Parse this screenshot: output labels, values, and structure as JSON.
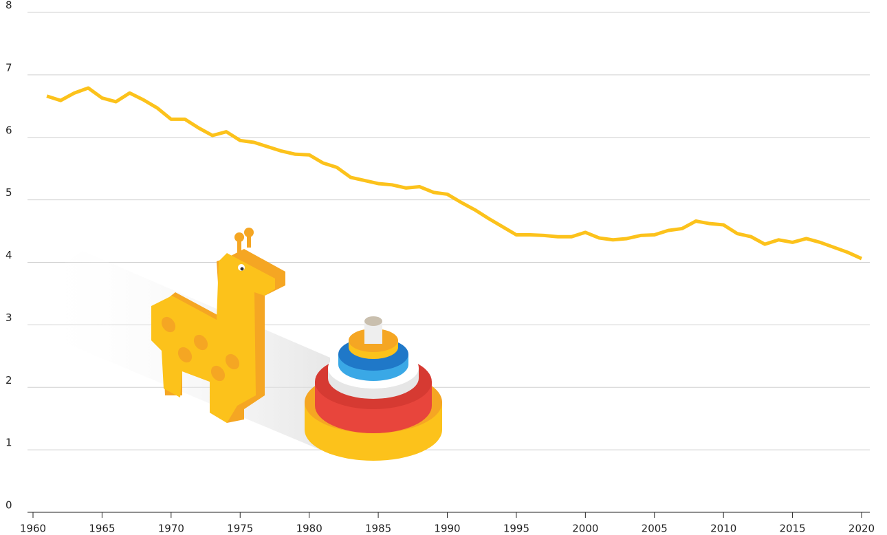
{
  "chart_data": {
    "type": "line",
    "x": [
      1961,
      1962,
      1963,
      1964,
      1965,
      1966,
      1967,
      1968,
      1969,
      1970,
      1971,
      1972,
      1973,
      1974,
      1975,
      1976,
      1977,
      1978,
      1979,
      1980,
      1981,
      1982,
      1983,
      1984,
      1985,
      1986,
      1987,
      1988,
      1989,
      1990,
      1991,
      1992,
      1993,
      1994,
      1995,
      1996,
      1997,
      1998,
      1999,
      2000,
      2001,
      2002,
      2003,
      2004,
      2005,
      2006,
      2007,
      2008,
      2009,
      2010,
      2011,
      2012,
      2013,
      2014,
      2015,
      2016,
      2017,
      2018,
      2019,
      2020
    ],
    "series": [
      {
        "color": "#fcc21b",
        "values": [
          6.66,
          6.59,
          6.71,
          6.79,
          6.63,
          6.57,
          6.71,
          6.6,
          6.47,
          6.29,
          6.29,
          6.15,
          6.03,
          6.09,
          5.95,
          5.92,
          5.85,
          5.78,
          5.73,
          5.72,
          5.59,
          5.52,
          5.36,
          5.31,
          5.26,
          5.24,
          5.19,
          5.21,
          5.12,
          5.09,
          4.96,
          4.84,
          4.7,
          4.57,
          4.44,
          4.44,
          4.43,
          4.41,
          4.41,
          4.48,
          4.39,
          4.36,
          4.38,
          4.43,
          4.44,
          4.51,
          4.54,
          4.66,
          4.62,
          4.6,
          4.46,
          4.41,
          4.29,
          4.36,
          4.32,
          4.38,
          4.32,
          4.24,
          4.16,
          4.06
        ]
      }
    ],
    "xlim": [
      1960,
      2020
    ],
    "xticks": [
      1960,
      1965,
      1970,
      1975,
      1980,
      1985,
      1990,
      1995,
      2000,
      2005,
      2010,
      2015,
      2020
    ],
    "ylim": [
      0,
      8
    ],
    "yticks": [
      0,
      1,
      2,
      3,
      4,
      5,
      6,
      7,
      8
    ],
    "grid": true
  }
}
